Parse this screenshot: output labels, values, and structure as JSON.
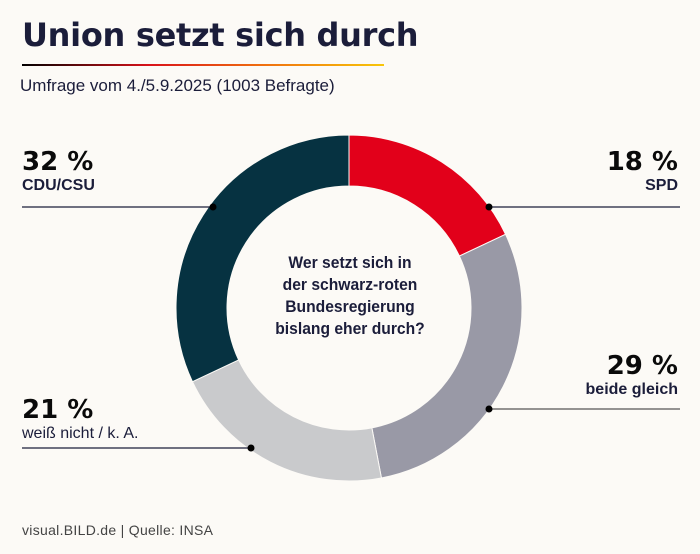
{
  "header": {
    "title": "Union setzt sich durch",
    "subtitle": "Umfrage vom 4./5.9.2025 (1003 Befragte)"
  },
  "footer": {
    "source": "visual.BILD.de | Quelle: INSA"
  },
  "colors": {
    "background": "#fcfaf6",
    "text": "#1b1d3a"
  },
  "chart_data": {
    "type": "pie",
    "variant": "donut",
    "title": "Union setzt sich durch",
    "subtitle": "Umfrage vom 4./5.9.2025 (1003 Befragte)",
    "center_text": [
      "Wer setzt sich in",
      "der schwarz-roten",
      "Bundesregierung",
      "bislang eher durch?"
    ],
    "unit": "%",
    "start": "top",
    "direction": "clockwise",
    "slices": [
      {
        "key": "spd",
        "label": "SPD",
        "value": 18,
        "display": "18 %",
        "color": "#e2001a",
        "side": "right"
      },
      {
        "key": "beide",
        "label": "beide gleich",
        "value": 29,
        "display": "29 %",
        "color": "#9999a6",
        "side": "right"
      },
      {
        "key": "weiss",
        "label": "weiß nicht / k. A.",
        "value": 21,
        "display": "21 %",
        "color": "#c9cacc",
        "side": "left"
      },
      {
        "key": "cdu",
        "label": "CDU/CSU",
        "value": 32,
        "display": "32 %",
        "color": "#063241",
        "side": "left"
      }
    ]
  }
}
